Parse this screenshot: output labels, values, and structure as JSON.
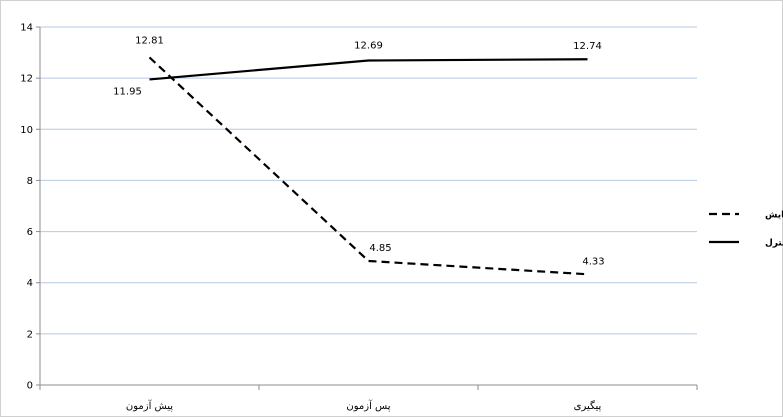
{
  "chart_data": {
    "type": "line",
    "categories": [
      "پیش آزمون",
      "پس آزمون",
      "پیگیری"
    ],
    "series": [
      {
        "name": "آزمایش",
        "values": [
          12.81,
          4.85,
          4.33
        ],
        "line_style": "dashed",
        "color": "#000000"
      },
      {
        "name": "کنترل",
        "values": [
          11.95,
          12.69,
          12.74
        ],
        "line_style": "solid",
        "color": "#000000"
      }
    ],
    "ylim": [
      0,
      14
    ],
    "yticks": [
      0,
      2,
      4,
      6,
      8,
      10,
      12,
      14
    ],
    "grid": true,
    "grid_color": "#b7c9e3",
    "legend_position": "right",
    "data_labels": true
  }
}
